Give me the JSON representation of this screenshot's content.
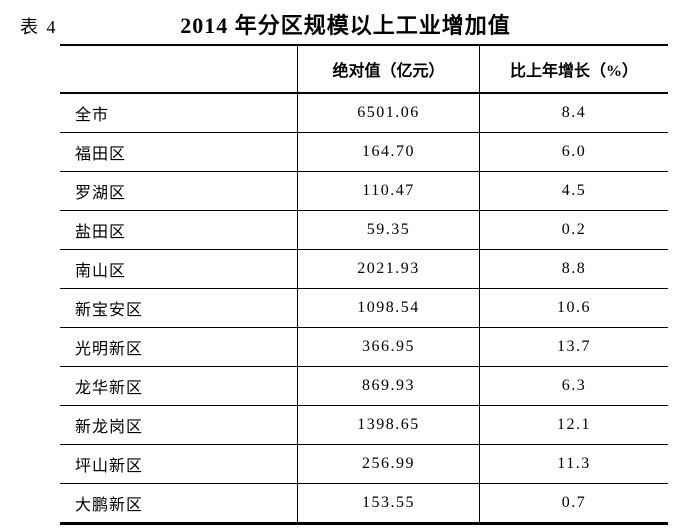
{
  "document": {
    "table_label": "表 4",
    "title": "2014 年分区规模以上工业增加值"
  },
  "chart_data": {
    "type": "table",
    "title": "2014 年分区规模以上工业增加值",
    "columns": [
      "",
      "绝对值（亿元）",
      "比上年增长（%）"
    ],
    "rows": [
      {
        "region": "全市",
        "absolute": "6501.06",
        "growth": "8.4"
      },
      {
        "region": "福田区",
        "absolute": "164.70",
        "growth": "6.0"
      },
      {
        "region": "罗湖区",
        "absolute": "110.47",
        "growth": "4.5"
      },
      {
        "region": "盐田区",
        "absolute": "59.35",
        "growth": "0.2"
      },
      {
        "region": "南山区",
        "absolute": "2021.93",
        "growth": "8.8"
      },
      {
        "region": "新宝安区",
        "absolute": "1098.54",
        "growth": "10.6"
      },
      {
        "region": "光明新区",
        "absolute": "366.95",
        "growth": "13.7"
      },
      {
        "region": "龙华新区",
        "absolute": "869.93",
        "growth": "6.3"
      },
      {
        "region": "新龙岗区",
        "absolute": "1398.65",
        "growth": "12.1"
      },
      {
        "region": "坪山新区",
        "absolute": "256.99",
        "growth": "11.3"
      },
      {
        "region": "大鹏新区",
        "absolute": "153.55",
        "growth": "0.7"
      }
    ]
  },
  "colors": {
    "text": "#000000",
    "background": "#ffffff",
    "line": "#000000"
  }
}
